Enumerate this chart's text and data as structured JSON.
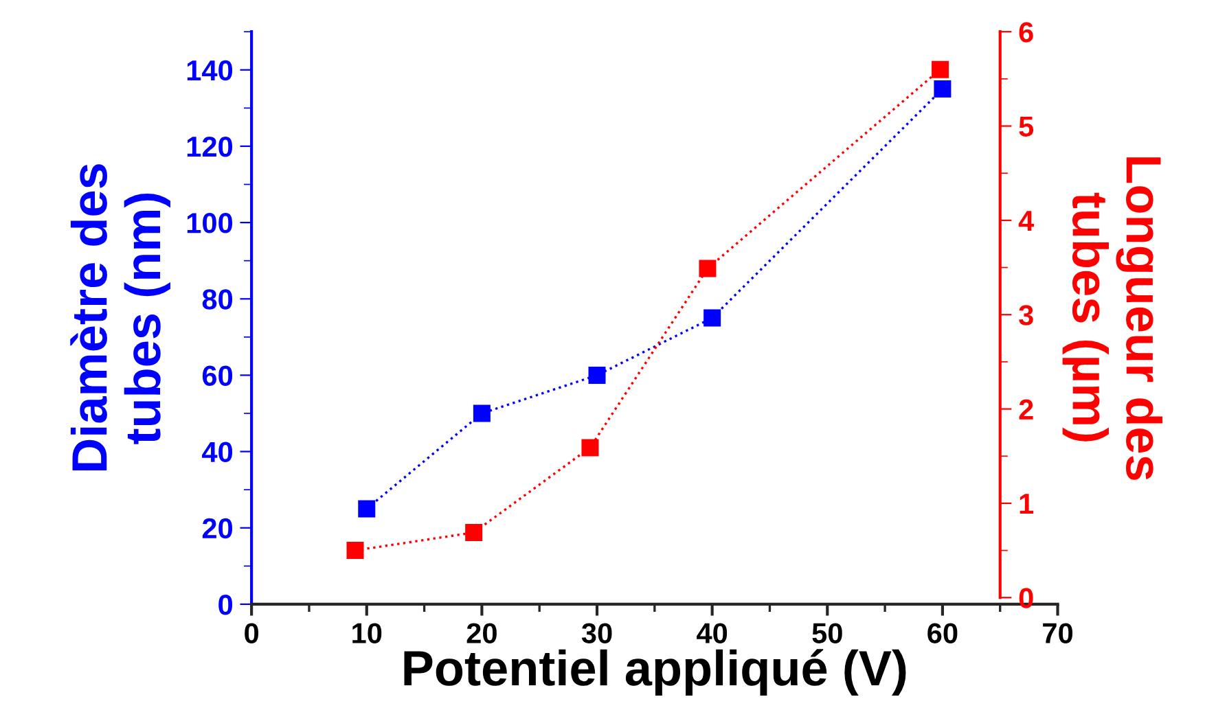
{
  "chart_data": {
    "type": "line",
    "xlabel": "Potentiel appliqué (V)",
    "ylabel": "Diamètre des\ntubes (nm)",
    "y2label": "Longueur des\ntubes (µm)",
    "xlim": [
      0,
      70
    ],
    "xticks": [
      0,
      10,
      20,
      30,
      40,
      50,
      60,
      70
    ],
    "ylim": [
      0,
      150
    ],
    "yticks": [
      0,
      20,
      40,
      60,
      80,
      100,
      120,
      140
    ],
    "y2lim": [
      -0.07,
      6
    ],
    "y2ticks": [
      0,
      1,
      2,
      3,
      4,
      5,
      6
    ],
    "marker": "square",
    "line_style": "dotted",
    "grid": false,
    "legend": false,
    "series": [
      {
        "color": "#0000ff",
        "x": [
          10,
          20,
          30,
          40,
          60
        ],
        "values": [
          25,
          50,
          60,
          75,
          135
        ]
      },
      {
        "color": "#ff0000",
        "axis": "y2",
        "x": [
          9,
          19.3,
          29.4,
          39.6,
          59.8
        ],
        "values": [
          0.5,
          0.69,
          1.59,
          3.49,
          5.6
        ]
      }
    ]
  }
}
